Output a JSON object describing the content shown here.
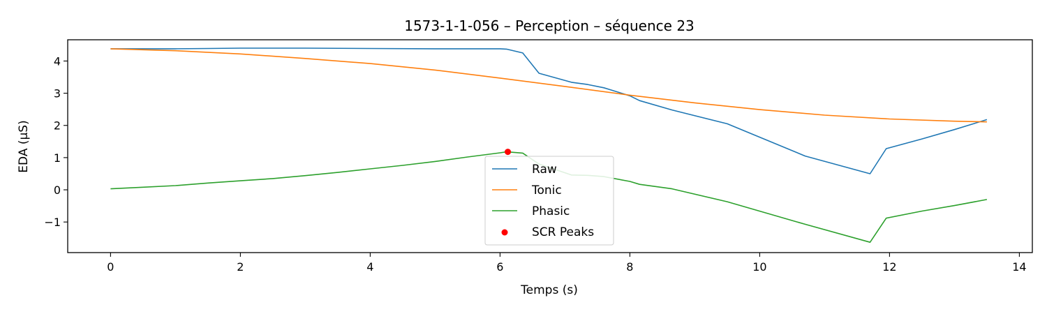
{
  "chart_data": {
    "type": "line",
    "title": "1573-1-1-056 – Perception – séquence 23",
    "xlabel": "Temps (s)",
    "ylabel": "EDA (µS)",
    "xlim": [
      -0.66,
      14.2
    ],
    "ylim": [
      -1.95,
      4.66
    ],
    "xticks": [
      0,
      2,
      4,
      6,
      8,
      10,
      12,
      14
    ],
    "xtick_labels": [
      "0",
      "2",
      "4",
      "6",
      "8",
      "10",
      "12",
      "14"
    ],
    "yticks": [
      -1,
      0,
      1,
      2,
      3,
      4
    ],
    "ytick_labels": [
      "−1",
      "0",
      "1",
      "2",
      "3",
      "4"
    ],
    "grid": false,
    "legend_position": "center",
    "series": [
      {
        "name": "Raw",
        "color": "#1f77b4",
        "x": [
          0,
          0.5,
          1.0,
          1.5,
          2.0,
          3.0,
          4.0,
          5.0,
          5.5,
          6.0,
          6.1,
          6.35,
          6.6,
          7.1,
          7.35,
          7.6,
          8.0,
          8.15,
          8.65,
          9.5,
          10.7,
          11.7,
          11.95,
          12.5,
          13.0,
          13.5
        ],
        "y": [
          4.38,
          4.38,
          4.38,
          4.39,
          4.4,
          4.4,
          4.39,
          4.38,
          4.38,
          4.38,
          4.37,
          4.25,
          3.62,
          3.34,
          3.27,
          3.17,
          2.92,
          2.77,
          2.48,
          2.05,
          1.05,
          0.5,
          1.28,
          1.58,
          1.87,
          2.18
        ]
      },
      {
        "name": "Tonic",
        "color": "#ff7f0e",
        "x": [
          0,
          1,
          2,
          3,
          4,
          5,
          6,
          7,
          8,
          9,
          10,
          11,
          12,
          13,
          13.5
        ],
        "y": [
          4.38,
          4.32,
          4.22,
          4.08,
          3.92,
          3.72,
          3.47,
          3.21,
          2.94,
          2.7,
          2.49,
          2.32,
          2.2,
          2.13,
          2.11
        ]
      },
      {
        "name": "Phasic",
        "color": "#2ca02c",
        "x": [
          0,
          0.5,
          1.0,
          1.5,
          2.0,
          2.5,
          3.0,
          3.5,
          4.0,
          4.5,
          5.0,
          5.5,
          6.0,
          6.1,
          6.35,
          6.6,
          7.1,
          7.35,
          7.6,
          8.0,
          8.15,
          8.65,
          9.5,
          10.7,
          11.7,
          11.95,
          12.5,
          13.0,
          13.5
        ],
        "y": [
          0.03,
          0.08,
          0.13,
          0.21,
          0.28,
          0.35,
          0.44,
          0.54,
          0.65,
          0.76,
          0.88,
          1.02,
          1.15,
          1.18,
          1.14,
          0.8,
          0.46,
          0.45,
          0.41,
          0.26,
          0.17,
          0.03,
          -0.37,
          -1.07,
          -1.63,
          -0.88,
          -0.66,
          -0.49,
          -0.3
        ]
      }
    ],
    "peaks": {
      "name": "SCR Peaks",
      "color": "#ff0000",
      "x": [
        6.12
      ],
      "y": [
        1.18
      ]
    }
  }
}
